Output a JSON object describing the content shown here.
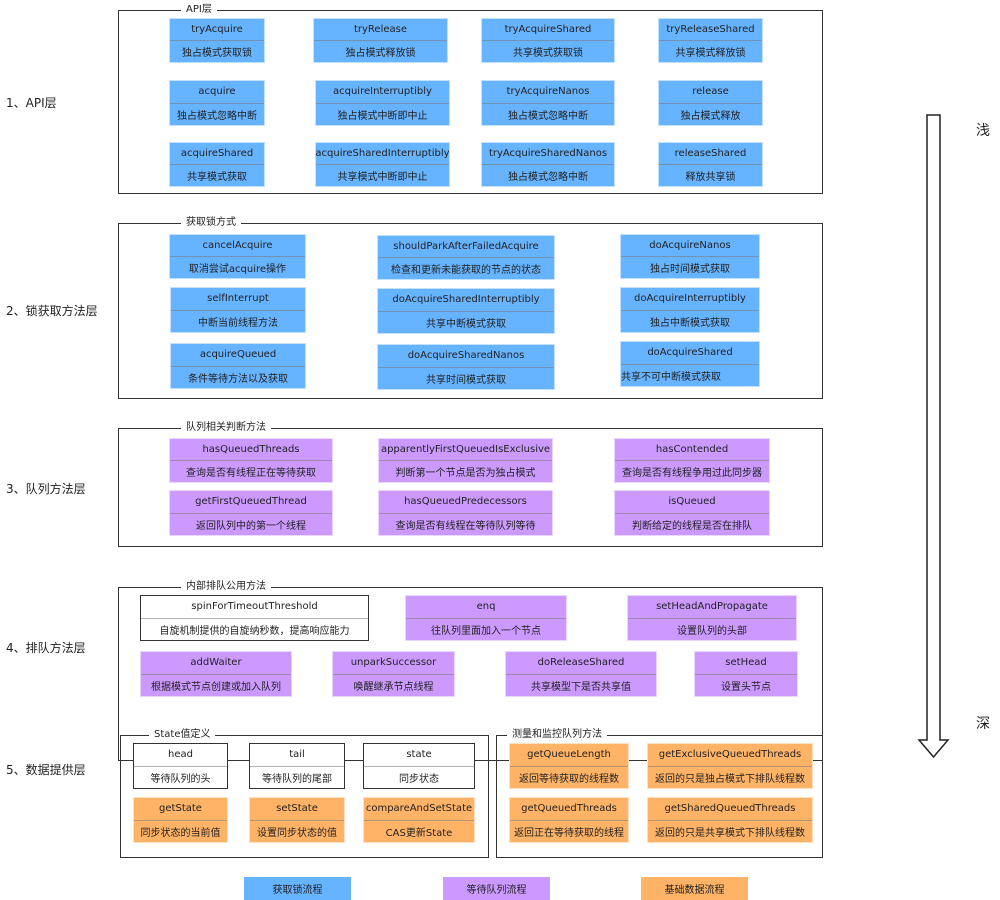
{
  "colors": {
    "acquire": "#66b3ff",
    "queue": "#cc99ff",
    "data": "#ffb366",
    "plain": "#ffffff"
  },
  "layer_labels": [
    "1、API层",
    "2、锁获取方法层",
    "3、队列方法层",
    "4、排队方法层",
    "5、数据提供层"
  ],
  "depth": {
    "shallow": "浅",
    "deep": "深",
    "arrow_icon": "down-arrow"
  },
  "groups": [
    {
      "title": "API层",
      "boxes": [
        {
          "name": "tryAcquire",
          "desc": "独占模式获取锁",
          "color": "acquire"
        },
        {
          "name": "tryRelease",
          "desc": "独占模式释放锁",
          "color": "acquire"
        },
        {
          "name": "tryAcquireShared",
          "desc": "共享模式获取锁",
          "color": "acquire"
        },
        {
          "name": "tryReleaseShared",
          "desc": "共享模式释放锁",
          "color": "acquire"
        },
        {
          "name": "acquire",
          "desc": "独占模式忽略中断",
          "color": "acquire"
        },
        {
          "name": "acquireInterruptibly",
          "desc": "独占模式中断即中止",
          "color": "acquire"
        },
        {
          "name": "tryAcquireNanos",
          "desc": "独占模式忽略中断",
          "color": "acquire"
        },
        {
          "name": "release",
          "desc": "独占模式释放",
          "color": "acquire"
        },
        {
          "name": "acquireShared",
          "desc": "共享模式获取",
          "color": "acquire"
        },
        {
          "name": "acquireSharedInterruptibly",
          "desc": "共享模式中断即中止",
          "color": "acquire"
        },
        {
          "name": "tryAcquireSharedNanos",
          "desc": "独占模式忽略中断",
          "color": "acquire"
        },
        {
          "name": "releaseShared",
          "desc": "释放共享锁",
          "color": "acquire"
        }
      ]
    },
    {
      "title": "获取锁方式",
      "boxes": [
        {
          "name": "cancelAcquire",
          "desc": "取消尝试acquire操作",
          "color": "acquire"
        },
        {
          "name": "shouldParkAfterFailedAcquire",
          "desc": "检查和更新未能获取的节点的状态",
          "color": "acquire"
        },
        {
          "name": "doAcquireNanos",
          "desc": "独占时间模式获取",
          "color": "acquire"
        },
        {
          "name": "selfInterrupt",
          "desc": "中断当前线程方法",
          "color": "acquire"
        },
        {
          "name": "doAcquireSharedInterruptibly",
          "desc": "共享中断模式获取",
          "color": "acquire"
        },
        {
          "name": "doAcquireInterruptibly",
          "desc": "独占中断模式获取",
          "color": "acquire"
        },
        {
          "name": "acquireQueued",
          "desc": "条件等待方法以及获取",
          "color": "acquire"
        },
        {
          "name": "doAcquireSharedNanos",
          "desc": "共享时间模式获取",
          "color": "acquire"
        },
        {
          "name": "doAcquireShared",
          "desc": "共享不可中断模式获取",
          "color": "acquire"
        }
      ]
    },
    {
      "title": "队列相关判断方法",
      "boxes": [
        {
          "name": "hasQueuedThreads",
          "desc": "查询是否有线程正在等待获取",
          "color": "queue"
        },
        {
          "name": "apparentlyFirstQueuedIsExclusive",
          "desc": "判断第一个节点是否为独占模式",
          "color": "queue"
        },
        {
          "name": "hasContended",
          "desc": "查询是否有线程争用过此同步器",
          "color": "queue"
        },
        {
          "name": "getFirstQueuedThread",
          "desc": "返回队列中的第一个线程",
          "color": "queue"
        },
        {
          "name": "hasQueuedPredecessors",
          "desc": "查询是否有线程在等待队列等待",
          "color": "queue"
        },
        {
          "name": "isQueued",
          "desc": "判断给定的线程是否在排队",
          "color": "queue"
        }
      ]
    },
    {
      "title": "内部排队公用方法",
      "boxes": [
        {
          "name": "spinForTimeoutThreshold",
          "desc": "自旋机制提供的自旋纳秒数，提高响应能力",
          "color": "plain"
        },
        {
          "name": "enq",
          "desc": "往队列里面加入一个节点",
          "color": "queue"
        },
        {
          "name": "setHeadAndPropagate",
          "desc": "设置队列的头部",
          "color": "queue"
        },
        {
          "name": "addWaiter",
          "desc": "根据模式节点创建或加入队列",
          "color": "queue"
        },
        {
          "name": "unparkSuccessor",
          "desc": "唤醒继承节点线程",
          "color": "queue"
        },
        {
          "name": "doReleaseShared",
          "desc": "共享模型下是否共享值",
          "color": "queue"
        },
        {
          "name": "setHead",
          "desc": "设置头节点",
          "color": "queue"
        }
      ]
    },
    {
      "title": "State值定义",
      "boxes": [
        {
          "name": "head",
          "desc": "等待队列的头",
          "color": "plain"
        },
        {
          "name": "tail",
          "desc": "等待队列的尾部",
          "color": "plain"
        },
        {
          "name": "state",
          "desc": "同步状态",
          "color": "plain"
        },
        {
          "name": "getState",
          "desc": "同步状态的当前值",
          "color": "data"
        },
        {
          "name": "setState",
          "desc": "设置同步状态的值",
          "color": "data"
        },
        {
          "name": "compareAndSetState",
          "desc": "CAS更新State",
          "color": "data"
        }
      ]
    },
    {
      "title": "测量和监控队列方法",
      "boxes": [
        {
          "name": "getQueueLength",
          "desc": "返回等待获取的线程数",
          "color": "data"
        },
        {
          "name": "getExclusiveQueuedThreads",
          "desc": "返回的只是独占模式下排队线程数",
          "color": "data"
        },
        {
          "name": "getQueuedThreads",
          "desc": "返回正在等待获取的线程",
          "color": "data"
        },
        {
          "name": "getSharedQueuedThreads",
          "desc": "返回的只是共享模式下排队线程数",
          "color": "data"
        }
      ]
    }
  ],
  "legend": [
    {
      "label": "获取锁流程",
      "color": "acquire"
    },
    {
      "label": "等待队列流程",
      "color": "queue"
    },
    {
      "label": "基础数据流程",
      "color": "data"
    }
  ]
}
